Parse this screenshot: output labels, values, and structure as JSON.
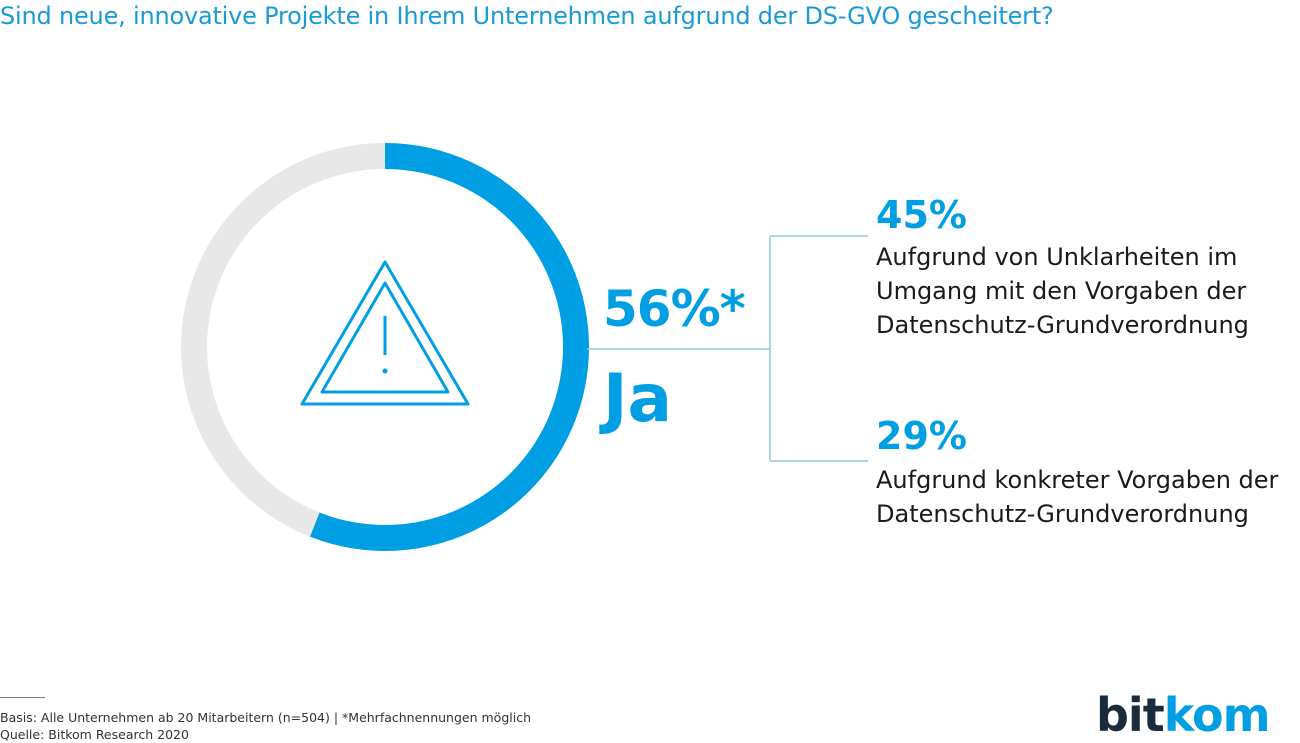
{
  "title": "Sind neue, innovative Projekte in Ihrem Unternehmen aufgrund der DS-GVO gescheitert?",
  "chart_data": {
    "type": "pie",
    "variant": "donut",
    "slices": [
      {
        "label": "Ja",
        "value": 56,
        "color": "#009fe3"
      },
      {
        "value": 44,
        "color": "#e8e8e8"
      }
    ],
    "main_value": "56%*",
    "main_label": "Ja",
    "breakdown": [
      {
        "value": "45%",
        "text": "Aufgrund von Unklarheiten im Umgang mit den Vorgaben der Datenschutz-Grundverordnung",
        "lines": [
          "Aufgrund von Unklarheiten im",
          "Umgang mit den Vorgaben der",
          "Datenschutz-Grundverordnung"
        ]
      },
      {
        "value": "29%",
        "text": "Aufgrund konkreter Vorgaben der Datenschutz-Grundverordnung",
        "lines": [
          "Aufgrund konkreter Vorgaben der",
          "Datenschutz-Grundverordnung"
        ]
      }
    ],
    "center_icon": "warning-icon",
    "colors": {
      "accent": "#009fe3",
      "remainder": "#e8e8e8",
      "connector": "#8ecae6"
    }
  },
  "footer": {
    "basis": "Basis: Alle Unternehmen ab 20 Mitarbeitern (n=504) | *Mehrfachnennungen möglich",
    "source": "Quelle: Bitkom Research 2020"
  },
  "logo": {
    "part1": "bit",
    "part2": "kom"
  }
}
